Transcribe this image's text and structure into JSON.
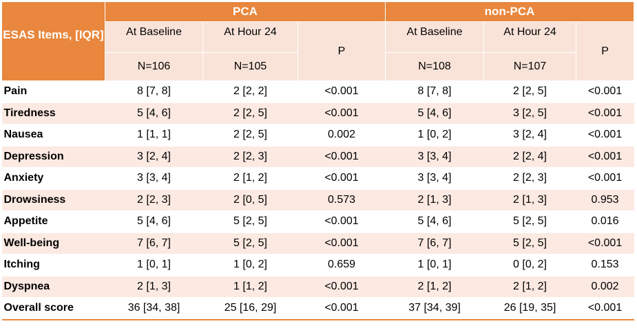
{
  "header": {
    "item_col": "ESAS Items, [IQR]",
    "groups": [
      "PCA",
      "non-PCA"
    ],
    "pca": {
      "baseline": "At Baseline",
      "hour24": "At Hour 24",
      "p": "P",
      "n_baseline": "N=106",
      "n_hour24": "N=105"
    },
    "nonpca": {
      "baseline": "At Baseline",
      "hour24": "At Hour 24",
      "p": "P",
      "n_baseline": "N=108",
      "n_hour24": "N=107"
    }
  },
  "rows": [
    [
      "Pain",
      "8 [7, 8]",
      "2 [2, 2]",
      "<0.001",
      "8 [7, 8]",
      "2 [2, 5]",
      "<0.001"
    ],
    [
      "Tiredness",
      "5 [4, 6]",
      "2 [2, 5]",
      "<0.001",
      "5 [4, 6]",
      "3 [2, 5]",
      "<0.001"
    ],
    [
      "Nausea",
      "1 [1, 1]",
      "2 [2, 5]",
      "0.002",
      "1 [0, 2]",
      "3 [2, 4]",
      "<0.001"
    ],
    [
      "Depression",
      "3 [2, 4]",
      "2 [2, 3]",
      "<0.001",
      "3 [3, 4]",
      "2 [2, 4]",
      "<0.001"
    ],
    [
      "Anxiety",
      "3 [3, 4]",
      "2 [1, 2]",
      "<0.001",
      "3 [3, 4]",
      "2 [2, 3]",
      "<0.001"
    ],
    [
      "Drowsiness",
      "2 [2, 3]",
      "2 [0, 5]",
      "0.573",
      "2 [1, 3]",
      "2 [1, 3]",
      "0.953"
    ],
    [
      "Appetite",
      "5 [4, 6]",
      "5 [2, 5]",
      "<0.001",
      "5 [4, 6]",
      "5 [2, 5]",
      "0.016"
    ],
    [
      "Well-being",
      "7 [6, 7]",
      "5 [2, 5]",
      "<0.001",
      "7 [6, 7]",
      "5 [2, 5]",
      "<0.001"
    ],
    [
      "Itching",
      "1 [0, 1]",
      "1 [0, 2]",
      "0.659",
      "1 [0, 1]",
      "0 [0, 2]",
      "0.153"
    ],
    [
      "Dyspnea",
      "2 [1, 3]",
      "1 [1, 2]",
      "<0.001",
      "2 [1, 2]",
      "2 [1, 2]",
      "0.002"
    ],
    [
      "Overall score",
      "36 [34, 38]",
      "25 [16, 29]",
      "<0.001",
      "37 [34, 39]",
      "26 [19, 35]",
      "<0.001"
    ]
  ],
  "colors": {
    "header_orange": "#e8873d",
    "header_light": "#f9e3d8",
    "row_pink": "#fbe9e2"
  }
}
